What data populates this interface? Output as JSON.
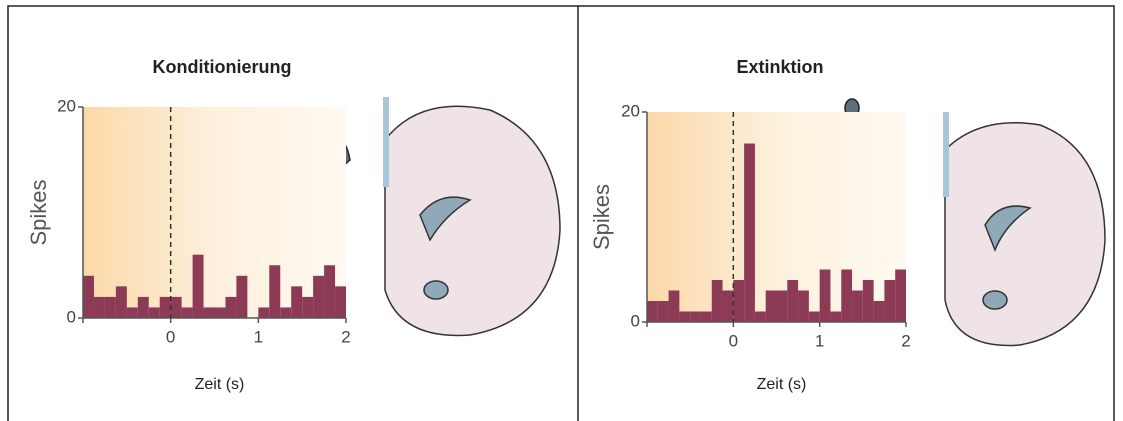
{
  "chart_data": [
    {
      "type": "histogram",
      "title": "Konditionierung",
      "xlabel": "Zeit (s)",
      "ylabel": "Spikes",
      "bins": [
        -1,
        -0.875,
        -0.75,
        -0.625,
        -0.5,
        -0.375,
        -0.25,
        -0.125,
        0,
        0.125,
        0.25,
        0.375,
        0.5,
        0.625,
        0.75,
        0.875,
        1,
        1.125,
        1.25,
        1.375,
        1.5,
        1.625,
        1.75,
        1.875,
        2
      ],
      "values": [
        4,
        2,
        2,
        3,
        1,
        2,
        1,
        2,
        2,
        1,
        6,
        1,
        1,
        2,
        4,
        0,
        1,
        5,
        1,
        3,
        2,
        4,
        5,
        3
      ],
      "color": "#8c3a56",
      "xlim": [
        -1,
        2
      ],
      "ylim": [
        0,
        20
      ],
      "xticks": [
        0,
        1,
        2
      ],
      "yticks": [
        0,
        20
      ]
    },
    {
      "type": "histogram",
      "title": "Extinktion",
      "xlabel": "Zeit (s)",
      "ylabel": "Spikes",
      "bins": [
        -1,
        -0.875,
        -0.75,
        -0.625,
        -0.5,
        -0.375,
        -0.25,
        -0.125,
        0,
        0.125,
        0.25,
        0.375,
        0.5,
        0.625,
        0.75,
        0.875,
        1,
        1.125,
        1.25,
        1.375,
        1.5,
        1.625,
        1.75,
        1.875,
        2
      ],
      "values": [
        2,
        2,
        3,
        1,
        1,
        1,
        4,
        3,
        4,
        17,
        1,
        3,
        3,
        4,
        3,
        1,
        5,
        1,
        5,
        3,
        4,
        2,
        4,
        5
      ],
      "color": "#8c3a56",
      "xlim": [
        -1,
        2
      ],
      "ylim": [
        0,
        20
      ],
      "xticks": [
        0,
        1,
        2
      ],
      "yticks": [
        0,
        20
      ]
    }
  ]
}
